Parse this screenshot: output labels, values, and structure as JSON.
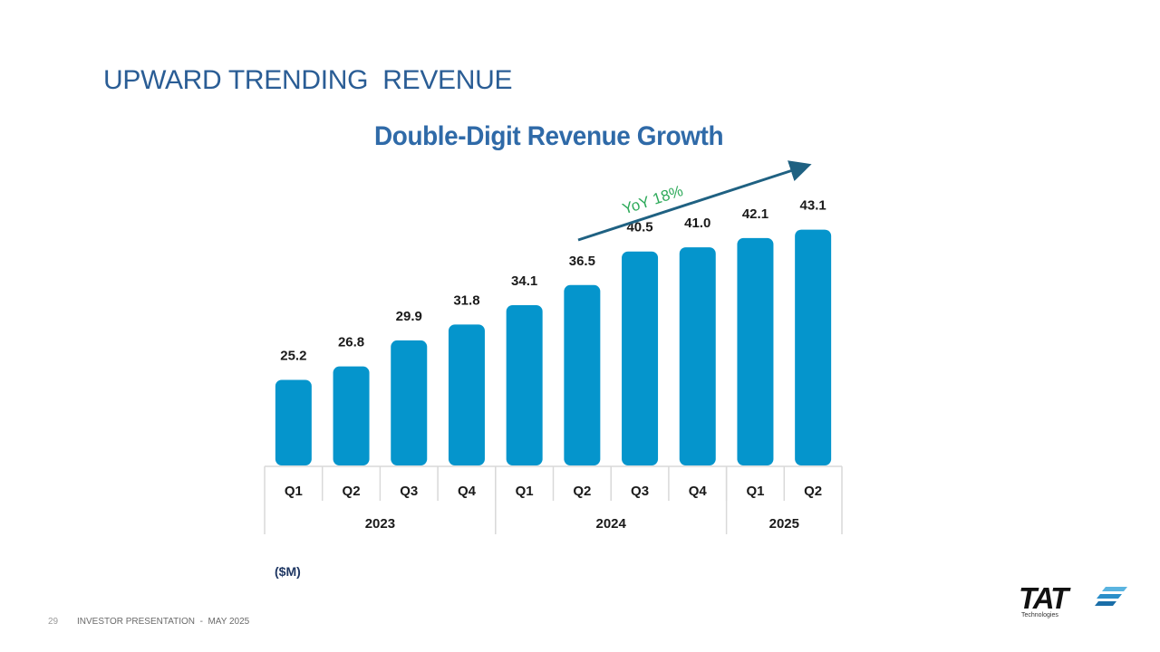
{
  "slide": {
    "title": "UPWARD TRENDING  REVENUE",
    "page_number": "29",
    "footer": "INVESTOR PRESENTATION  -  MAY 2025",
    "unit_label": "($M)",
    "logo": {
      "name": "TAT",
      "subtitle": "Technologies"
    }
  },
  "colors": {
    "bar": "#0595cc",
    "title": "#2a5d95",
    "chart_title": "#2f6aa8",
    "arrow": "#1f6182",
    "annotation": "#2eaa5a",
    "grid_line": "#d9d9d9"
  },
  "chart_data": {
    "type": "bar",
    "title": "Double-Digit Revenue Growth",
    "xlabel": "",
    "ylabel": "($M)",
    "categories": [
      "Q1",
      "Q2",
      "Q3",
      "Q4",
      "Q1",
      "Q2",
      "Q3",
      "Q4",
      "Q1",
      "Q2"
    ],
    "groups": [
      {
        "label": "2023",
        "span": 4
      },
      {
        "label": "2024",
        "span": 4
      },
      {
        "label": "2025",
        "span": 2
      }
    ],
    "values": [
      25.2,
      26.8,
      29.9,
      31.8,
      34.1,
      36.5,
      40.5,
      41.0,
      42.1,
      43.1
    ],
    "value_labels": [
      "25.2",
      "26.8",
      "29.9",
      "31.8",
      "34.1",
      "36.5",
      "40.5",
      "41.0",
      "42.1",
      "43.1"
    ],
    "ylim": [
      15,
      45
    ],
    "grid": false,
    "legend": "none",
    "annotations": [
      {
        "type": "arrow",
        "text": "YoY 18%",
        "from_category_index": 5,
        "to_category_index": 9
      }
    ]
  }
}
